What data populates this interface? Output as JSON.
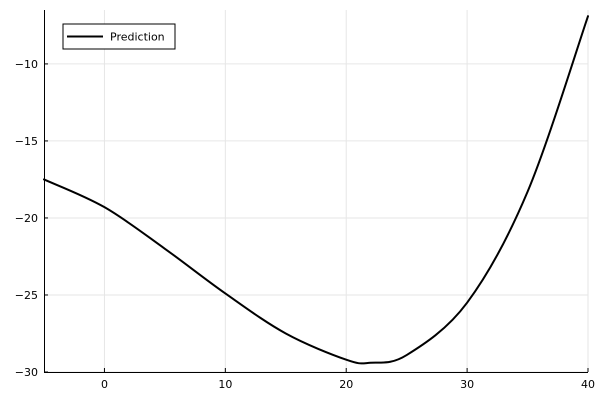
{
  "chart_data": {
    "type": "line",
    "title": "",
    "xlabel": "",
    "ylabel": "",
    "xlim": [
      -5,
      40
    ],
    "ylim": [
      -30,
      -6.5
    ],
    "xticks": [
      0,
      10,
      20,
      30,
      40
    ],
    "yticks": [
      -30,
      -25,
      -20,
      -15,
      -10
    ],
    "xtick_labels": [
      "0",
      "10",
      "20",
      "30",
      "40"
    ],
    "ytick_labels": [
      "−30",
      "−25",
      "−20",
      "−15",
      "−10"
    ],
    "grid": true,
    "legend_position": "top-left",
    "series": [
      {
        "name": "Prediction",
        "color": "#000000",
        "x": [
          -5,
          0,
          5,
          10,
          15,
          20,
          22,
          25,
          30,
          35,
          40
        ],
        "y": [
          -17.5,
          -19.3,
          -22.0,
          -24.9,
          -27.5,
          -29.2,
          -29.4,
          -28.9,
          -25.5,
          -18.3,
          -6.9
        ]
      }
    ]
  }
}
